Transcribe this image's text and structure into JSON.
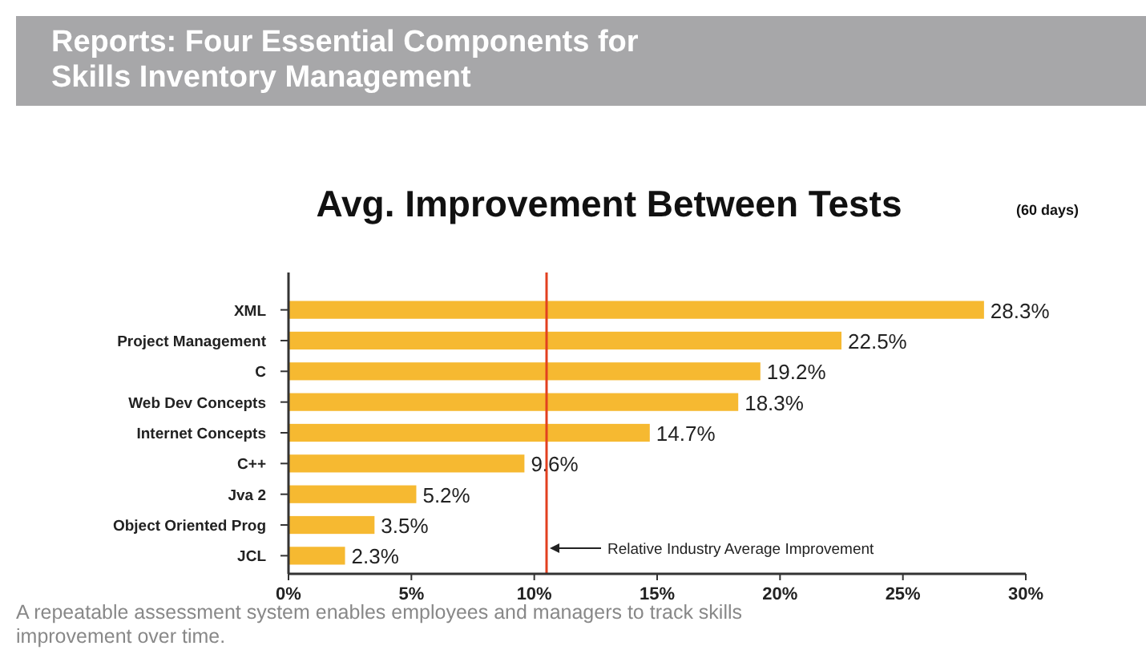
{
  "chart_data": {
    "type": "bar",
    "orientation": "horizontal",
    "title": "Reports: Four Essential Components for Skills Inventory Management",
    "subtitle": "Avg. Improvement Between Tests",
    "categories": [
      "XML",
      "Project Management",
      "C",
      "Web Dev Concepts",
      "Internet Concepts",
      "C++",
      "Jva 2",
      "Object Oriented Prog",
      "JCL"
    ],
    "values": [
      28.3,
      22.5,
      19.2,
      18.3,
      14.7,
      9.6,
      5.2,
      3.5,
      2.3
    ],
    "value_labels": [
      "28.3%",
      "22.5%",
      "19.2%",
      "18.3%",
      "14.7%",
      "9.6%",
      "5.2%",
      "3.5%",
      "2.3%"
    ],
    "color": "#f6b931",
    "xlim": [
      0,
      30
    ],
    "xticks": [
      {
        "value": 0,
        "label": "0%"
      },
      {
        "value": 5,
        "label": "5%"
      },
      {
        "value": 10,
        "label": "10%"
      },
      {
        "value": 15,
        "label": "15%"
      },
      {
        "value": 20,
        "label": "20%"
      },
      {
        "value": 25,
        "label": "25%"
      },
      {
        "value": 30,
        "label": "30%"
      }
    ],
    "ref_lines": [
      {
        "axis": "x",
        "value": 10.5,
        "label": "Relative Industry Average Improvement",
        "color": "#e2401f"
      }
    ],
    "annotations": [
      "(60 days)",
      "A repeatable assessment system enables employees and managers to track skills improvement over time."
    ],
    "grid": false
  }
}
